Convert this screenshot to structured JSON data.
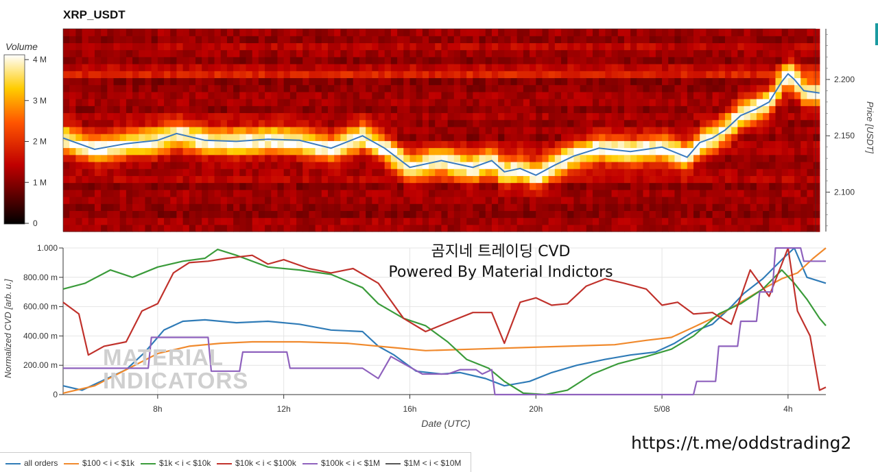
{
  "header": {
    "title": "XRP_USDT"
  },
  "colorbar": {
    "label": "Volume",
    "ticks": [
      "0",
      "1 M",
      "2 M",
      "3 M",
      "4 M"
    ]
  },
  "overlay": {
    "line1": "곰지네 트레이딩 CVD",
    "line2": "Powered By Material Indictors",
    "watermark_line1": "MATERIAL",
    "watermark_line2": "INDICATORS"
  },
  "footer": {
    "url": "https://t.me/oddstrading2"
  },
  "chart_data": [
    {
      "type": "heatmap",
      "title": "XRP_USDT",
      "ylabel": "Price [USDT]",
      "yticks": [
        "2.100",
        "2.150",
        "2.200"
      ],
      "ylim": [
        2.065,
        2.245
      ],
      "colorscale": "hot",
      "colorbar_label": "Volume",
      "colorbar_range": [
        0,
        4000000
      ],
      "price_line": {
        "color": "#3a7bbf",
        "x_hours": [
          5.0,
          6.0,
          7.0,
          8.0,
          8.6,
          9.5,
          10.5,
          11.5,
          12.5,
          13.5,
          14.5,
          15.2,
          16.0,
          17.0,
          18.0,
          18.6,
          19.0,
          19.5,
          20.0,
          20.6,
          21.2,
          22.0,
          23.0,
          24.0,
          24.8,
          25.2,
          25.6,
          26.0,
          26.5,
          27.0,
          27.4,
          27.8,
          28.0,
          28.2,
          28.5,
          29.0
        ],
        "y_price": [
          2.148,
          2.138,
          2.143,
          2.146,
          2.152,
          2.146,
          2.145,
          2.147,
          2.146,
          2.139,
          2.15,
          2.139,
          2.122,
          2.128,
          2.122,
          2.128,
          2.118,
          2.121,
          2.115,
          2.124,
          2.132,
          2.139,
          2.136,
          2.14,
          2.131,
          2.144,
          2.148,
          2.155,
          2.168,
          2.174,
          2.18,
          2.198,
          2.205,
          2.2,
          2.19,
          2.188
        ]
      }
    },
    {
      "type": "line",
      "xlabel": "Date (UTC)",
      "ylabel": "Normalized CVD [arb. u.]",
      "x_ticks": [
        "8h",
        "12h",
        "16h",
        "20h",
        "5/08",
        "4h"
      ],
      "x_tick_hours": [
        8,
        12,
        16,
        20,
        24,
        28
      ],
      "xlim_hours": [
        5.0,
        29.2
      ],
      "yticks": [
        "0",
        "200.00 m",
        "400.00 m",
        "600.00 m",
        "800.00 m",
        "1.000"
      ],
      "ylim": [
        0,
        1
      ],
      "grid": true,
      "legend_position": "bottom-left",
      "series": [
        {
          "name": "all orders",
          "color": "#2f7bb7",
          "x": [
            5.0,
            5.6,
            6.2,
            7.0,
            7.6,
            8.2,
            8.8,
            9.5,
            10.5,
            11.5,
            12.5,
            13.5,
            14.5,
            15.0,
            15.5,
            16.2,
            17.0,
            17.6,
            18.4,
            19.0,
            19.8,
            20.5,
            21.3,
            22.2,
            23.0,
            23.8,
            24.4,
            25.0,
            25.6,
            26.2,
            26.6,
            27.2,
            27.8,
            28.2,
            28.6,
            29.2
          ],
          "y": [
            0.06,
            0.03,
            0.09,
            0.17,
            0.29,
            0.44,
            0.5,
            0.51,
            0.49,
            0.5,
            0.48,
            0.44,
            0.43,
            0.33,
            0.27,
            0.16,
            0.14,
            0.15,
            0.11,
            0.06,
            0.09,
            0.15,
            0.2,
            0.24,
            0.27,
            0.29,
            0.35,
            0.43,
            0.48,
            0.6,
            0.69,
            0.79,
            0.92,
            1.0,
            0.8,
            0.76
          ]
        },
        {
          "name": "$100 < i < $1k",
          "color": "#f0892c",
          "x": [
            5.0,
            6.0,
            7.0,
            8.0,
            9.0,
            10.0,
            11.0,
            12.5,
            14.0,
            15.5,
            16.5,
            18.0,
            19.5,
            21.0,
            22.5,
            23.5,
            24.3,
            25.0,
            25.8,
            26.5,
            27.2,
            27.8,
            28.3,
            28.8,
            29.2
          ],
          "y": [
            0.01,
            0.06,
            0.17,
            0.28,
            0.33,
            0.35,
            0.36,
            0.36,
            0.35,
            0.32,
            0.3,
            0.31,
            0.32,
            0.33,
            0.34,
            0.37,
            0.39,
            0.46,
            0.54,
            0.63,
            0.72,
            0.79,
            0.83,
            0.93,
            1.0
          ]
        },
        {
          "name": "$1k < i < $10k",
          "color": "#3a9b3a",
          "x": [
            5.0,
            5.7,
            6.5,
            7.2,
            8.0,
            8.8,
            9.5,
            9.9,
            10.5,
            11.5,
            12.5,
            13.5,
            14.5,
            15.0,
            15.8,
            16.5,
            17.2,
            17.8,
            18.5,
            19.0,
            19.6,
            20.3,
            21.0,
            21.8,
            22.6,
            23.5,
            24.3,
            25.0,
            25.8,
            26.5,
            27.2,
            27.8,
            28.2,
            28.6,
            29.0,
            29.2
          ],
          "y": [
            0.72,
            0.76,
            0.85,
            0.8,
            0.87,
            0.91,
            0.93,
            0.99,
            0.95,
            0.87,
            0.85,
            0.82,
            0.73,
            0.62,
            0.52,
            0.47,
            0.36,
            0.24,
            0.18,
            0.09,
            0.01,
            0.0,
            0.03,
            0.14,
            0.21,
            0.26,
            0.31,
            0.4,
            0.55,
            0.62,
            0.72,
            0.85,
            0.76,
            0.65,
            0.52,
            0.47
          ]
        },
        {
          "name": "$10k < i < $100k",
          "color": "#c0312b",
          "x": [
            5.0,
            5.5,
            5.8,
            6.3,
            7.0,
            7.5,
            8.0,
            8.5,
            9.0,
            9.6,
            10.2,
            11.0,
            11.5,
            12.0,
            12.8,
            13.5,
            14.2,
            15.0,
            15.8,
            16.5,
            17.3,
            18.0,
            18.6,
            19.0,
            19.5,
            20.0,
            20.5,
            21.0,
            21.6,
            22.2,
            22.8,
            23.5,
            24.0,
            24.5,
            25.0,
            25.6,
            26.2,
            26.8,
            27.4,
            28.0,
            28.3,
            28.7,
            29.0,
            29.2
          ],
          "y": [
            0.63,
            0.55,
            0.27,
            0.33,
            0.36,
            0.57,
            0.62,
            0.83,
            0.9,
            0.91,
            0.93,
            0.95,
            0.89,
            0.92,
            0.86,
            0.83,
            0.86,
            0.76,
            0.52,
            0.43,
            0.5,
            0.56,
            0.56,
            0.35,
            0.63,
            0.66,
            0.61,
            0.62,
            0.74,
            0.79,
            0.76,
            0.72,
            0.61,
            0.63,
            0.55,
            0.56,
            0.48,
            0.85,
            0.67,
            1.0,
            0.57,
            0.4,
            0.03,
            0.05
          ]
        },
        {
          "name": "$100k < i < $1M",
          "color": "#8e61bd",
          "x": [
            5.0,
            6.5,
            7.7,
            7.8,
            9.6,
            9.7,
            10.6,
            10.7,
            12.1,
            12.2,
            14.0,
            14.5,
            15.0,
            15.4,
            16.4,
            17.2,
            17.6,
            18.1,
            18.3,
            18.6,
            18.7,
            19.0,
            19.5,
            20.5,
            22.0,
            24.0,
            25.0,
            25.1,
            25.7,
            25.8,
            26.4,
            26.5,
            27.0,
            27.1,
            27.5,
            27.6,
            28.4,
            28.5,
            29.2
          ],
          "y": [
            0.18,
            0.18,
            0.18,
            0.39,
            0.39,
            0.16,
            0.16,
            0.29,
            0.29,
            0.18,
            0.18,
            0.18,
            0.11,
            0.26,
            0.14,
            0.14,
            0.17,
            0.17,
            0.14,
            0.17,
            0.0,
            0.0,
            0.0,
            0.0,
            0.0,
            0.0,
            0.0,
            0.09,
            0.09,
            0.33,
            0.33,
            0.5,
            0.5,
            0.7,
            0.7,
            1.0,
            1.0,
            0.91,
            0.91
          ]
        },
        {
          "name": "$1M < i < $10M",
          "color": "#555555",
          "x": [],
          "y": []
        }
      ]
    }
  ]
}
